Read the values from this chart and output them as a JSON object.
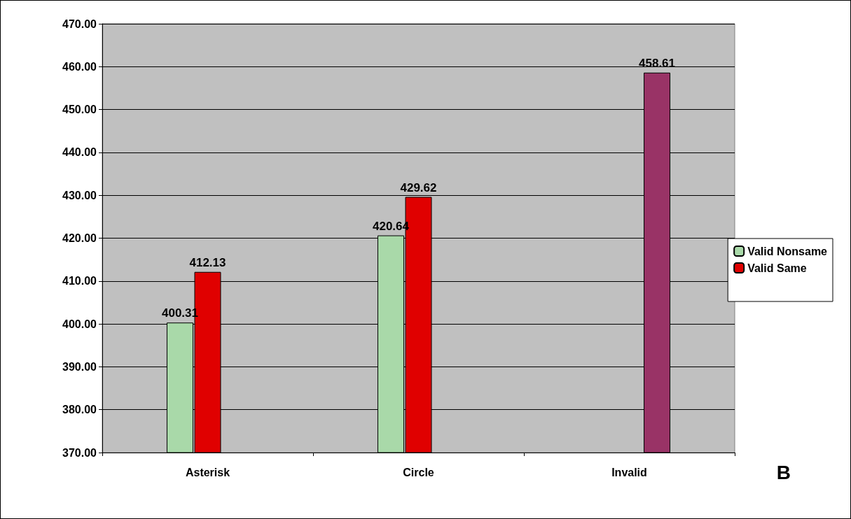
{
  "chart_data": {
    "type": "bar",
    "categories": [
      "Asterisk",
      "Circle",
      "Invalid"
    ],
    "series": [
      {
        "name": "Valid Nonsame",
        "color": "#a9d9a9",
        "values": [
          400.31,
          420.64,
          null
        ]
      },
      {
        "name": "Valid Same",
        "color": "#e00000",
        "values": [
          412.13,
          429.62,
          null
        ]
      },
      {
        "color": "#993366",
        "values": [
          null,
          null,
          458.61
        ]
      }
    ],
    "ylim": [
      370,
      470
    ],
    "yticks": [
      {
        "value": 370,
        "label": "370.00"
      },
      {
        "value": 380,
        "label": "380.00"
      },
      {
        "value": 390,
        "label": "390.00"
      },
      {
        "value": 400,
        "label": "400.00"
      },
      {
        "value": 410,
        "label": "410.00"
      },
      {
        "value": 420,
        "label": "420.00"
      },
      {
        "value": 430,
        "label": "430.00"
      },
      {
        "value": 440,
        "label": "440.00"
      },
      {
        "value": 450,
        "label": "450.00"
      },
      {
        "value": 460,
        "label": "460.00"
      },
      {
        "value": 470,
        "label": "470.00"
      }
    ],
    "grid": "y",
    "legend": "right",
    "data_labels": true,
    "annotations": [
      "B"
    ]
  }
}
